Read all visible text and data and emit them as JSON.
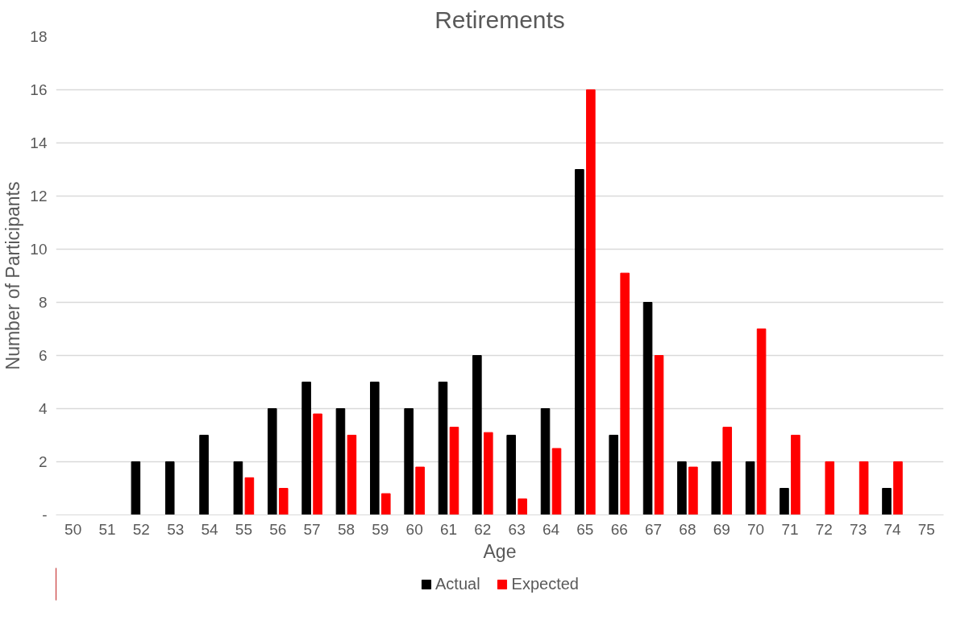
{
  "chart_data": {
    "type": "bar",
    "title": "Retirements",
    "xlabel": "Age",
    "ylabel": "Number of Participants",
    "categories": [
      "50",
      "51",
      "52",
      "53",
      "54",
      "55",
      "56",
      "57",
      "58",
      "59",
      "60",
      "61",
      "62",
      "63",
      "64",
      "65",
      "66",
      "67",
      "68",
      "69",
      "70",
      "71",
      "72",
      "73",
      "74",
      "75"
    ],
    "series": [
      {
        "name": "Actual",
        "color": "#000000",
        "values": [
          null,
          null,
          2,
          2,
          3,
          2,
          4,
          5,
          4,
          5,
          4,
          5,
          6,
          3,
          4,
          13,
          3,
          8,
          2,
          2,
          2,
          1,
          null,
          null,
          1,
          null
        ]
      },
      {
        "name": "Expected",
        "color": "#ff0000",
        "values": [
          null,
          null,
          null,
          null,
          null,
          1.4,
          1.0,
          3.8,
          3.0,
          0.8,
          1.8,
          3.3,
          3.1,
          0.6,
          2.5,
          16,
          9.1,
          6,
          1.8,
          3.3,
          7,
          3,
          2,
          2,
          2,
          null
        ]
      }
    ],
    "ylim": [
      0,
      18
    ],
    "yticks": [
      {
        "value": 0,
        "label": "-"
      },
      2,
      4,
      6,
      8,
      10,
      12,
      14,
      16,
      18
    ],
    "grid": "y",
    "legend": "bottom"
  }
}
